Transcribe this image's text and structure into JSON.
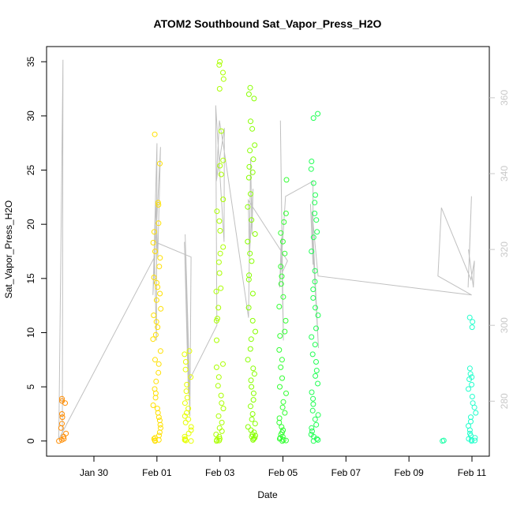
{
  "chart_data": {
    "type": "scatter",
    "title": "ATOM2 Southbound Sat_Vapor_Press_H2O",
    "xlabel": "Date",
    "ylabel": "Sat_Vapor_Press_H2O",
    "ylim": [
      -1.4,
      36.4
    ],
    "y2lim": [
      265.5,
      373.5
    ],
    "x_tick_labels": [
      "Jan 30",
      "Feb 01",
      "Feb 03",
      "Feb 05",
      "Feb 07",
      "Feb 09",
      "Feb 11"
    ],
    "y_ticks": [
      0,
      5,
      10,
      15,
      20,
      25,
      30,
      35
    ],
    "y2_ticks": [
      280,
      300,
      320,
      340,
      360
    ],
    "colors": {
      "axis": "#000000",
      "secondary_axis": "#c8c8c8",
      "line": "#c0c0c0"
    },
    "series": [
      {
        "x": "Jan 29",
        "color": "#ff8c00",
        "values": [
          0,
          0.1,
          0.2,
          0.4,
          0.7,
          1.2,
          1.6,
          2.2,
          2.5,
          3.5,
          3.7,
          3.9
        ]
      },
      {
        "x": "Feb 01",
        "color": "#ffe000",
        "values": [
          0,
          0.05,
          0.1,
          0.2,
          0.3,
          0.5,
          0.8,
          1.2,
          1.5,
          1.9,
          2.2,
          2.6,
          3.0,
          3.3,
          4.0,
          4.4,
          4.8,
          5.5,
          6.3,
          7.1,
          7.5,
          8.3,
          9.4,
          9.8,
          10.5,
          11.0,
          11.6,
          12.2,
          13.0,
          13.6,
          14.2,
          14.6,
          15.1,
          16.1,
          16.9,
          17.5,
          18.3,
          19.3,
          20.1,
          21.8,
          22.0,
          25.6,
          28.3
        ]
      },
      {
        "x": "Feb 02",
        "color": "#e6ff00",
        "values": [
          0,
          0.05,
          0.1,
          0.2,
          0.4,
          0.7,
          1.0,
          1.3,
          1.7,
          2.0,
          2.3,
          2.6,
          3.0,
          3.5,
          4.0,
          4.6,
          5.2,
          5.9,
          6.6,
          7.3,
          8.0,
          8.3
        ]
      },
      {
        "x": "Feb 03",
        "color": "#aaff00",
        "values": [
          0,
          0.05,
          0.1,
          0.2,
          0.4,
          0.6,
          0.9,
          1.2,
          1.7,
          2.3,
          3.0,
          3.5,
          4.2,
          5.1,
          5.9,
          6.8,
          7.1,
          9.3,
          11.1,
          11.3,
          12.3,
          13.8,
          14.1,
          15.5,
          16.5,
          17.3,
          17.9,
          19.4,
          20.3,
          21.2,
          22.3,
          24.6,
          25.4,
          25.9,
          28.6,
          32.5,
          33.4,
          34.0,
          34.7,
          35.0
        ]
      },
      {
        "x": "Feb 04",
        "color": "#88ff00",
        "values": [
          0.1,
          0.2,
          0.3,
          0.4,
          0.5,
          0.6,
          0.8,
          1.0,
          1.3,
          1.6,
          2.0,
          2.5,
          3.2,
          3.8,
          4.4,
          5.0,
          5.6,
          6.2,
          6.7,
          7.5,
          8.5,
          9.4,
          10.1,
          11.1,
          12.3,
          13.6,
          14.9,
          15.3,
          16.6,
          17.3,
          18.4,
          19.1,
          20.4,
          21.6,
          22.8,
          24.3,
          24.8,
          25.3,
          26.0,
          26.8,
          27.3,
          28.8,
          29.5,
          31.6,
          32.0,
          32.6
        ]
      },
      {
        "x": "Feb 05",
        "color": "#33ff33",
        "values": [
          0,
          0.05,
          0.1,
          0.2,
          0.3,
          0.4,
          0.6,
          0.8,
          1.0,
          1.3,
          1.7,
          2.1,
          2.6,
          3.1,
          3.6,
          4.4,
          5.0,
          5.8,
          6.8,
          7.5,
          8.4,
          9.7,
          10.1,
          11.1,
          12.4,
          13.3,
          14.5,
          15.2,
          16.1,
          17.3,
          18.4,
          19.2,
          20.2,
          21.0,
          24.1
        ]
      },
      {
        "x": "Feb 06",
        "color": "#22ff55",
        "values": [
          0,
          0.1,
          0.2,
          0.4,
          0.6,
          0.9,
          1.2,
          1.5,
          2.0,
          2.4,
          2.8,
          3.4,
          3.9,
          4.5,
          5.3,
          6.0,
          6.5,
          7.3,
          8.0,
          8.9,
          9.6,
          10.4,
          11.6,
          12.3,
          13.2,
          14.0,
          14.7,
          15.7,
          17.5,
          18.8,
          19.3,
          20.4,
          21.0,
          22.0,
          22.7,
          23.8,
          25.1,
          25.8,
          29.8,
          30.2
        ]
      },
      {
        "x": "Feb 10",
        "color": "#22ffaa",
        "values": [
          0,
          0.05
        ]
      },
      {
        "x": "Feb 11",
        "color": "#22ffcc",
        "values": [
          0,
          0.05,
          0.1,
          0.2,
          0.3,
          0.5,
          0.7,
          1.0,
          1.4,
          1.8,
          2.2,
          2.6,
          3.1,
          3.5,
          4.1,
          4.8,
          5.2,
          5.7,
          5.9,
          6.2,
          6.7,
          10.5,
          11.0,
          11.4
        ]
      }
    ],
    "line_series": {
      "axis": "right",
      "points": [
        [
          "Jan 29",
          270
        ],
        [
          "Jan 29",
          370
        ],
        [
          "Jan 29",
          270
        ],
        [
          "Feb 01",
          318
        ],
        [
          "Feb 01",
          296
        ],
        [
          "Feb 01",
          348
        ],
        [
          "Feb 01",
          308
        ],
        [
          "Feb 01",
          347
        ],
        [
          "Feb 01",
          318
        ],
        [
          "Feb 01",
          332
        ],
        [
          "Feb 01",
          322
        ],
        [
          "Feb 02",
          318
        ],
        [
          "Feb 02",
          276
        ],
        [
          "Feb 02",
          322
        ],
        [
          "Feb 02",
          282
        ],
        [
          "Feb 02",
          318
        ],
        [
          "Feb 02",
          280
        ],
        [
          "Feb 02",
          324
        ],
        [
          "Feb 02",
          290
        ],
        [
          "Feb 02",
          285
        ],
        [
          "Feb 03",
          300
        ],
        [
          "Feb 03",
          358
        ],
        [
          "Feb 03",
          322
        ],
        [
          "Feb 03",
          352
        ],
        [
          "Feb 03",
          338
        ],
        [
          "Feb 03",
          354
        ],
        [
          "Feb 03",
          346
        ],
        [
          "Feb 04",
          302
        ],
        [
          "Feb 04",
          344
        ],
        [
          "Feb 04",
          324
        ],
        [
          "Feb 04",
          336
        ],
        [
          "Feb 04",
          318
        ],
        [
          "Feb 04",
          333
        ],
        [
          "Feb 05",
          317
        ],
        [
          "Feb 05",
          314
        ],
        [
          "Feb 05",
          354
        ],
        [
          "Feb 05",
          296
        ],
        [
          "Feb 05",
          323
        ],
        [
          "Feb 05",
          310
        ],
        [
          "Feb 05",
          334
        ],
        [
          "Feb 06",
          338
        ],
        [
          "Feb 06",
          316
        ],
        [
          "Feb 06",
          332
        ],
        [
          "Feb 06",
          294
        ],
        [
          "Feb 06",
          330
        ],
        [
          "Feb 06",
          313
        ],
        [
          "Feb 11",
          308
        ],
        [
          "Feb 10",
          313
        ],
        [
          "Feb 10",
          331
        ],
        [
          "Feb 11",
          312
        ],
        [
          "Feb 11",
          317
        ],
        [
          "Feb 11",
          310
        ],
        [
          "Feb 11",
          320
        ],
        [
          "Feb 11",
          318
        ],
        [
          "Feb 11",
          334
        ],
        [
          "Feb 11",
          310
        ]
      ]
    }
  }
}
